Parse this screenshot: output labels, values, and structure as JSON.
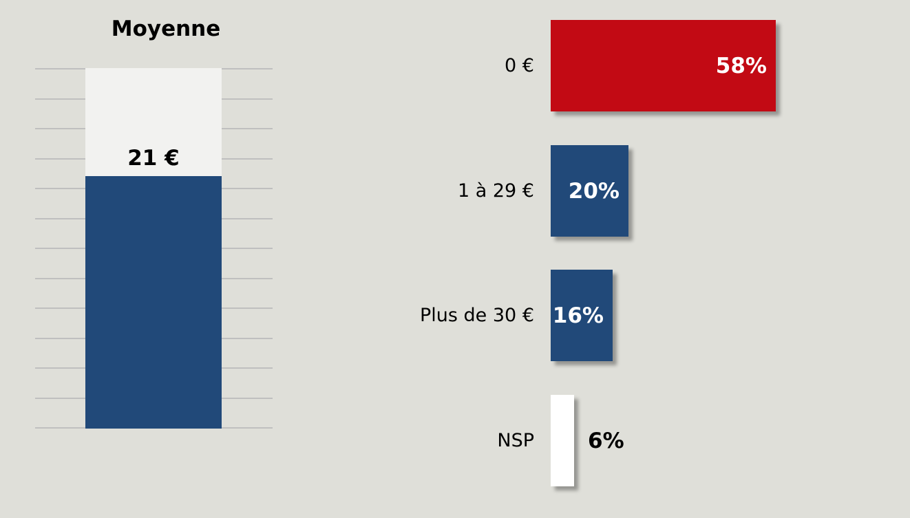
{
  "background_color": "#dfdfd9",
  "chart_data": [
    {
      "type": "bar",
      "orientation": "vertical",
      "title": "Moyenne",
      "categories": [
        "Moyenne"
      ],
      "values": [
        21
      ],
      "value_labels": [
        "21 €"
      ],
      "ylim": [
        0,
        30
      ],
      "gridline_step": 2.5,
      "grid": true,
      "legend": false,
      "colors": {
        "bar": "#214979",
        "remainder": "#f2f2f0",
        "gridline": "#bfbfbf",
        "value_label": "#000000"
      }
    },
    {
      "type": "bar",
      "orientation": "horizontal",
      "title": "",
      "categories": [
        "0 €",
        "1 à 29 €",
        "Plus de 30 €",
        "NSP"
      ],
      "values": [
        58,
        20,
        16,
        6
      ],
      "value_labels": [
        "58%",
        "20%",
        "16%",
        "6%"
      ],
      "xlim": [
        0,
        100
      ],
      "grid": false,
      "legend": false,
      "bar_colors": [
        "#c20a14",
        "#214979",
        "#214979",
        "#ffffff"
      ],
      "value_label_colors": [
        "#ffffff",
        "#ffffff",
        "#ffffff",
        "#000000"
      ],
      "value_label_placements": [
        "inside-end",
        "inside-end",
        "inside-end",
        "outside-end"
      ]
    }
  ]
}
